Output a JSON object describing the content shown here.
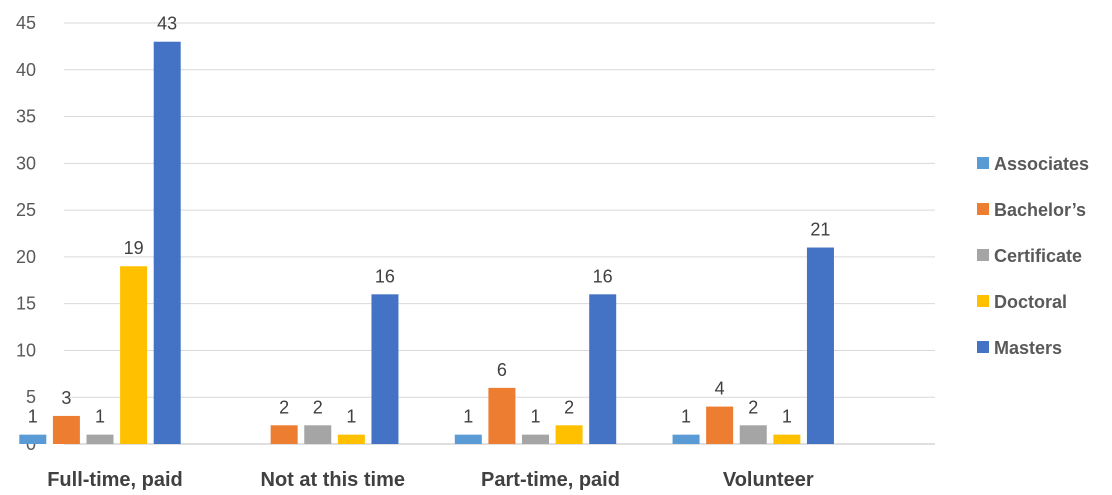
{
  "chart_data": {
    "type": "bar",
    "categories": [
      "Full-time, paid",
      "Not at this time",
      "Part-time, paid",
      "Volunteer"
    ],
    "series": [
      {
        "name": "Associates",
        "color": "#5B9BD5",
        "values": [
          1,
          0,
          1,
          1
        ]
      },
      {
        "name": "Bachelor’s",
        "color": "#ED7D31",
        "values": [
          3,
          2,
          6,
          4
        ]
      },
      {
        "name": "Certificate",
        "color": "#A5A5A5",
        "values": [
          1,
          2,
          1,
          2
        ]
      },
      {
        "name": "Doctoral",
        "color": "#FFC000",
        "values": [
          19,
          1,
          2,
          1
        ]
      },
      {
        "name": "Masters",
        "color": "#4472C4",
        "values": [
          43,
          16,
          16,
          21
        ]
      }
    ],
    "value_labels_shown": [
      [
        true,
        false,
        true,
        true
      ],
      [
        true,
        true,
        true,
        true
      ],
      [
        true,
        true,
        true,
        true
      ],
      [
        true,
        true,
        true,
        true
      ],
      [
        true,
        true,
        true,
        true
      ]
    ],
    "y_ticks": [
      "0",
      "5",
      "10",
      "15",
      "20",
      "25",
      "30",
      "35",
      "40",
      "45"
    ],
    "ylim": [
      0,
      45
    ],
    "grid": true,
    "legend_position": "right",
    "title": "",
    "xlabel": "",
    "ylabel": ""
  }
}
